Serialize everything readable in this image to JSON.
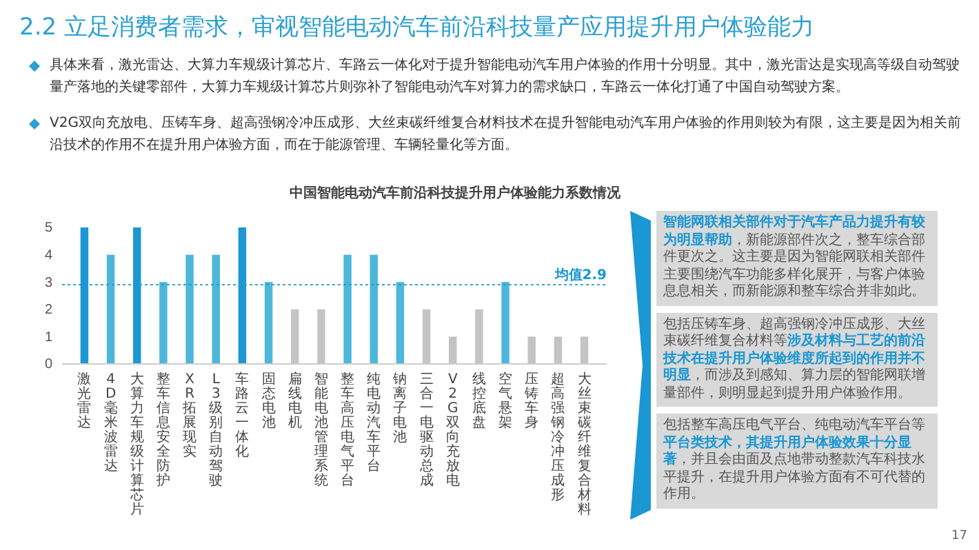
{
  "chart_data": {
    "type": "bar",
    "title": "2.2 立足消费者需求，审视智能电动汽车前沿科技量产应用提升用户体验能力",
    "subtitle": "中国智能电动汽车前沿科技提升用户体验能力系数情况",
    "categories": [
      "激光雷达",
      "4D毫米波雷达",
      "大算力车规级计算芯片",
      "整车信息安全防护",
      "XR拓展现实",
      "L3级别自动驾驶",
      "车路云一体化",
      "固态电池",
      "扁线电机",
      "智能电池管理系统",
      "整车高压电气平台",
      "纯电动汽车平台",
      "钠离子电池",
      "三合一电驱动总成",
      "V2G双向充放电",
      "线控底盘",
      "空气悬架",
      "压铸车身",
      "超高强钢冷冲压成形",
      "大丝束碳纤维复合材料"
    ],
    "values": [
      5,
      4,
      5,
      3,
      4,
      4,
      5,
      3,
      2,
      2,
      4,
      4,
      3,
      2,
      1,
      2,
      3,
      1,
      1,
      1
    ],
    "colors": [
      "#1b97d3",
      "#4cb7da",
      "#1b97d3",
      "#4cb7da",
      "#4cb7da",
      "#4cb7da",
      "#1b97d3",
      "#4cb7da",
      "#c4c4c4",
      "#c4c4c4",
      "#4cb7da",
      "#4cb7da",
      "#4cb7da",
      "#c4c4c4",
      "#c4c4c4",
      "#c4c4c4",
      "#4cb7da",
      "#c4c4c4",
      "#c4c4c4",
      "#c4c4c4"
    ],
    "ylim": [
      0,
      5
    ],
    "yticks": [
      0,
      1,
      2,
      3,
      4,
      5
    ],
    "grid": false,
    "ref_lines": [
      {
        "axis": "y",
        "value": 2.9,
        "label": "均值2.9",
        "color": "#1b97d3",
        "line_style": "dotted"
      }
    ],
    "annotations": [
      "具体来看，激光雷达、大算力车规级计算芯片、车路云一体化对于提升智能电动汽车用户体验的作用十分明显。其中，激光雷达是实现高等级自动驾驶量产落地的关键零部件，大算力车规级计算芯片则弥补了智能电动汽车对算力的需求缺口，车路云一体化打通了中国自动驾驶方案。",
      "V2G双向充放电、压铸车身、超高强钢冷冲压成形、大丝束碳纤维复合材料技术在提升智能电动汽车用户体验的作用则较为有限，这主要是因为相关前沿技术的作用不在提升用户体验方面，而在于能源管理、车辆轻量化等方面。",
      "智能网联相关部件对于汽车产品力提升有较为明显帮助",
      "，新能源部件次之，整车综合部件更次之。这主要是因为智能网联相关部件主要围绕汽车功能多样化展开，与客户体验息息相关，而新能源和整车综合并非如此。",
      "包括压铸车身、超高强钢冷冲压成形、大丝束碳纤维复合材料等",
      "涉及材料与工艺的前沿技术在提升用户体验维度所起到的作用并不明显",
      "，而涉及到感知、算力层的智能网联增量部件，则明显起到提升用户体验作用。",
      "包括整车高压电气平台、纯电动汽车平台等",
      "平台类技术，其提升用户体验效果十分显著",
      "，并且会由面及点地带动整款汽车科技水平提升，在提升用户体验方面有不可代替的作用。",
      "17"
    ]
  }
}
